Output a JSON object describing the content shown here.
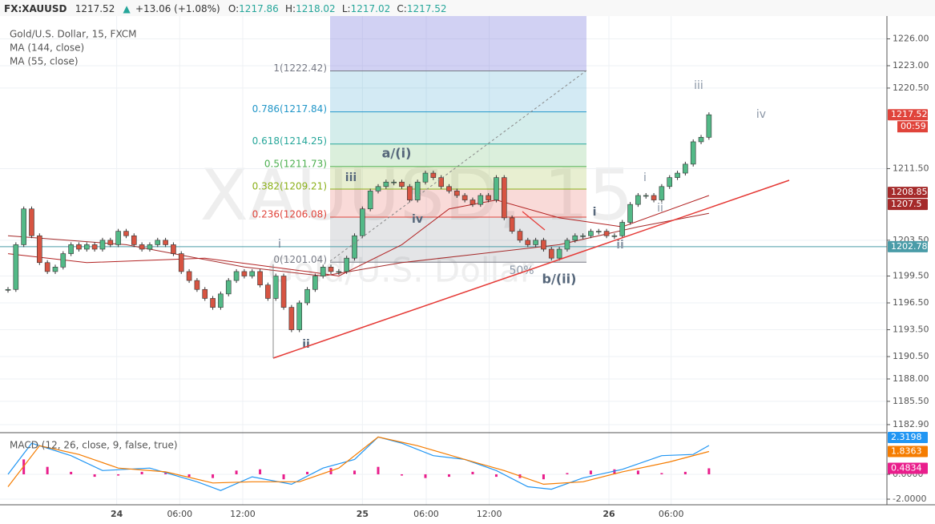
{
  "header": {
    "symbol": "FX:XAUUSD",
    "price": "1217.52",
    "arrow": "▲",
    "change": "+13.06 (+1.08%)",
    "ohlc": [
      {
        "label": "O:",
        "value": "1217.86"
      },
      {
        "label": "H:",
        "value": "1218.02"
      },
      {
        "label": "L:",
        "value": "1217.02"
      },
      {
        "label": "C:",
        "value": "1217.52"
      }
    ]
  },
  "legend": [
    "Gold/U.S. Dollar, 15, FXCM",
    "MA (144, close)",
    "MA (55, close)"
  ],
  "watermark": [
    "XAUUSD, 15",
    "Gold/U.S. Dollar"
  ],
  "price_pane": {
    "type": "candlestick",
    "ylim": [
      1182.0,
      1228.55
    ],
    "yticks": [
      {
        "value": 1226,
        "label": "1226.00"
      },
      {
        "value": 1223,
        "label": "1223.00"
      },
      {
        "value": 1220.5,
        "label": "1220.50"
      },
      {
        "value": 1211.5,
        "label": "1211.50"
      },
      {
        "value": 1203.5,
        "label": "1203.50"
      },
      {
        "value": 1199.5,
        "label": "1199.50"
      },
      {
        "value": 1196.5,
        "label": "1196.50"
      },
      {
        "value": 1193.5,
        "label": "1193.50"
      },
      {
        "value": 1190.5,
        "label": "1190.50"
      },
      {
        "value": 1188,
        "label": "1188.00"
      },
      {
        "value": 1185.5,
        "label": "1185.50"
      },
      {
        "value": 1182.9,
        "label": "1182.90"
      }
    ],
    "up_color": "#53b987",
    "down_color": "#d75442",
    "candles": [
      1198,
      1203,
      1207,
      1204,
      1201,
      1200,
      1200.5,
      1202,
      1203,
      1202.5,
      1203,
      1202.5,
      1203.5,
      1203,
      1204.5,
      1204,
      1203,
      1202.5,
      1203,
      1203.5,
      1203,
      1202,
      1200,
      1199,
      1198,
      1197,
      1196,
      1197.5,
      1199,
      1200,
      1199.5,
      1200,
      1198.5,
      1197,
      1199.5,
      1196,
      1193.5,
      1196.5,
      1198,
      1199.5,
      1200.5,
      1200,
      1200,
      1201.5,
      1204,
      1207,
      1209,
      1209.5,
      1210,
      1210,
      1209.5,
      1208,
      1210,
      1211,
      1210.5,
      1209.5,
      1209,
      1208.5,
      1208,
      1207.5,
      1208.5,
      1208,
      1210.5,
      1206,
      1204.5,
      1203.5,
      1203,
      1203.5,
      1202.5,
      1201.5,
      1202.5,
      1203.5,
      1204,
      1204,
      1204.5,
      1204.5,
      1204,
      1204,
      1205.5,
      1207.5,
      1208.5,
      1208.5,
      1208,
      1209.5,
      1210.5,
      1211,
      1212,
      1214.5,
      1215,
      1217.52
    ],
    "ma144": {
      "color": "#a52a2a",
      "x": [
        0,
        15,
        30,
        40,
        50,
        60,
        70,
        80,
        89
      ],
      "values": [
        1204,
        1203,
        1200.5,
        1199.5,
        1201,
        1202,
        1203,
        1205,
        1206.5
      ]
    },
    "ma55": {
      "color": "#b22222",
      "x": [
        0,
        10,
        25,
        38,
        42,
        50,
        56,
        62,
        70,
        78,
        89
      ],
      "values": [
        1202,
        1201,
        1201.5,
        1200,
        1199.5,
        1203,
        1207,
        1208,
        1206,
        1205,
        1208.5
      ]
    },
    "fib": [
      {
        "label": "1(1222.42)",
        "value": 1222.42,
        "color": "#787b86"
      },
      {
        "label": "0.786(1217.84)",
        "value": 1217.84,
        "color": "#2196c8"
      },
      {
        "label": "0.618(1214.25)",
        "value": 1214.25,
        "color": "#26a69a"
      },
      {
        "label": "0.5(1211.73)",
        "value": 1211.73,
        "color": "#4caf50"
      },
      {
        "label": "0.382(1209.21)",
        "value": 1209.21,
        "color": "#8bb01a"
      },
      {
        "label": "0.236(1206.08)",
        "value": 1206.08,
        "color": "#e0443b"
      },
      {
        "label": "0(1201.04)",
        "value": 1201.04,
        "color": "#787b86"
      }
    ],
    "waves": [
      "i",
      "ii",
      "iii",
      "iv",
      "a/(i)",
      "50%",
      "b/(ii)",
      "i",
      "ii",
      "i",
      "ii",
      "iii",
      "iv"
    ],
    "price_labels": [
      {
        "value": 1217.52,
        "color": "#e0443b"
      },
      {
        "value": 1208.85,
        "color": "#a52a2a"
      },
      {
        "value": 1207.5,
        "color": "#a52a2a"
      },
      {
        "value": 1202.78,
        "color": "#4a9ca8"
      }
    ],
    "timer": "00:59",
    "xticks": [
      {
        "value": 13.8,
        "label": "24"
      },
      {
        "value": 21.8,
        "label": "06:00"
      },
      {
        "value": 29.8,
        "label": "12:00"
      },
      {
        "value": 45,
        "label": "25"
      },
      {
        "value": 53.1,
        "label": "06:00"
      },
      {
        "value": 61.1,
        "label": "12:00"
      },
      {
        "value": 76.3,
        "label": "26"
      },
      {
        "value": 84.2,
        "label": "06:00"
      }
    ]
  },
  "macd_pane": {
    "legend": "MACD (12, 26, close, 9, false, true)",
    "ylim": [
      -2.45,
      3.35
    ],
    "yticks": [
      {
        "value": 0,
        "label": "0.0000"
      },
      {
        "value": -2,
        "label": "-2.0000"
      }
    ],
    "macd": {
      "color": "#2196f3",
      "x": [
        0,
        3,
        8,
        12,
        18,
        24,
        27,
        31,
        36,
        40,
        44,
        47,
        50,
        54,
        58,
        62,
        66,
        69,
        73,
        78,
        83,
        87,
        89
      ],
      "values": [
        0,
        2.5,
        1.5,
        0.3,
        0.5,
        -0.6,
        -1.3,
        -0.2,
        -0.8,
        0.5,
        1.2,
        3,
        2.5,
        1.5,
        1.2,
        0.3,
        -1,
        -1.2,
        -0.3,
        0.4,
        1.5,
        1.6,
        2.3198
      ]
    },
    "signal": {
      "color": "#f57c00",
      "x": [
        0,
        4,
        9,
        14,
        20,
        26,
        31,
        37,
        42,
        47,
        52,
        58,
        63,
        68,
        73,
        78,
        84,
        89
      ],
      "values": [
        -1,
        2.3,
        1.6,
        0.5,
        0.2,
        -0.7,
        -0.6,
        -0.6,
        0.5,
        3,
        2.3,
        1.2,
        0.3,
        -0.8,
        -0.6,
        0.2,
        1,
        1.8363
      ]
    },
    "histogram": {
      "color": "#e91e8c",
      "values": [
        1.2,
        0.6,
        0.2,
        -0.2,
        -0.1,
        0.2,
        0.1,
        -0.2,
        -0.3,
        0.3,
        0.4,
        -0.4,
        0.2,
        0.5,
        0.3,
        0.6,
        -0.1,
        -0.3,
        -0.2,
        0.2,
        -0.2,
        -0.3,
        -0.4,
        0.1,
        0.3,
        0.4,
        0.3,
        0.1,
        0.2,
        0.4834
      ]
    },
    "last_labels": [
      {
        "value": 2.3198,
        "color": "#2196f3"
      },
      {
        "value": 1.8363,
        "color": "#f57c00"
      },
      {
        "value": 0.4834,
        "color": "#e91e8c"
      }
    ]
  }
}
